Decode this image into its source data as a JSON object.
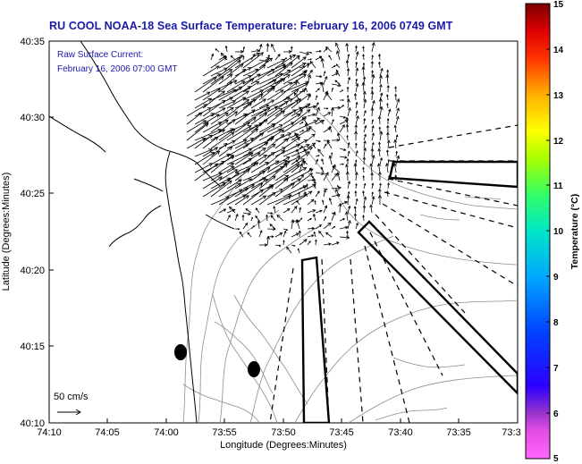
{
  "title": "RU COOL  NOAA-18  Sea Surface Temperature:  February 16, 2006 0749 GMT",
  "inset": {
    "line1": "Raw Surface Current:",
    "line2": "February 16, 2006 07:00 GMT",
    "scale_label": "50 cm/s"
  },
  "axes": {
    "xlabel": "Longitude (Degrees:Minutes)",
    "ylabel": "Latitude (Degrees:Minutes)",
    "xticks": [
      "74:10",
      "74:05",
      "74:00",
      "73:55",
      "73:50",
      "73:45",
      "73:40",
      "73:35",
      "73:3"
    ],
    "yticks": [
      "40:35",
      "40:30",
      "40:25",
      "40:20",
      "40:15",
      "40:10"
    ]
  },
  "colorbar": {
    "label": "Temperature (°C)",
    "ticks": [
      "15",
      "14",
      "13",
      "12",
      "11",
      "10",
      "9",
      "8",
      "7",
      "6",
      "5"
    ],
    "range": [
      5,
      15
    ]
  }
}
